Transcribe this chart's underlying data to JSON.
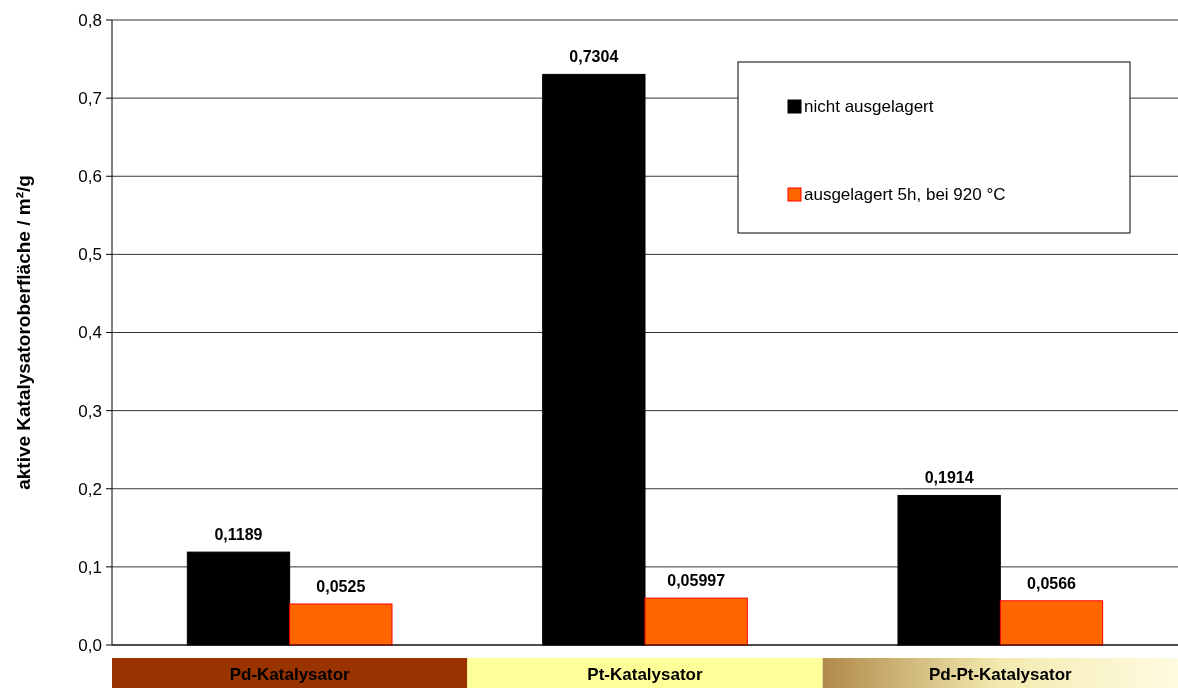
{
  "chart_data": {
    "type": "bar",
    "ylabel": "aktive Katalysatoroberfläche / m²/g",
    "categories": [
      "Pd-Katalysator",
      "Pt-Katalysator",
      "Pd-Pt-Katalysator"
    ],
    "series": [
      {
        "name": "nicht ausgelagert",
        "color": "#000000",
        "values": [
          0.1189,
          0.7304,
          0.1914
        ],
        "value_labels": [
          "0,1189",
          "0,7304",
          "0,1914"
        ]
      },
      {
        "name": "ausgelagert 5h, bei 920 °C",
        "color": "#ff6600",
        "values": [
          0.0525,
          0.05997,
          0.0566
        ],
        "value_labels": [
          "0,0525",
          "0,05997",
          "0,0566"
        ]
      }
    ],
    "ylim": [
      0,
      0.8
    ],
    "yticks": [
      {
        "value": 0,
        "label": "0,0"
      },
      {
        "value": 0.1,
        "label": "0,1"
      },
      {
        "value": 0.2,
        "label": "0,2"
      },
      {
        "value": 0.3,
        "label": "0,3"
      },
      {
        "value": 0.4,
        "label": "0,4"
      },
      {
        "value": 0.5,
        "label": "0,5"
      },
      {
        "value": 0.6,
        "label": "0,6"
      },
      {
        "value": 0.7,
        "label": "0,7"
      },
      {
        "value": 0.8,
        "label": "0,8"
      }
    ],
    "grid": "y",
    "legend": "top right"
  }
}
